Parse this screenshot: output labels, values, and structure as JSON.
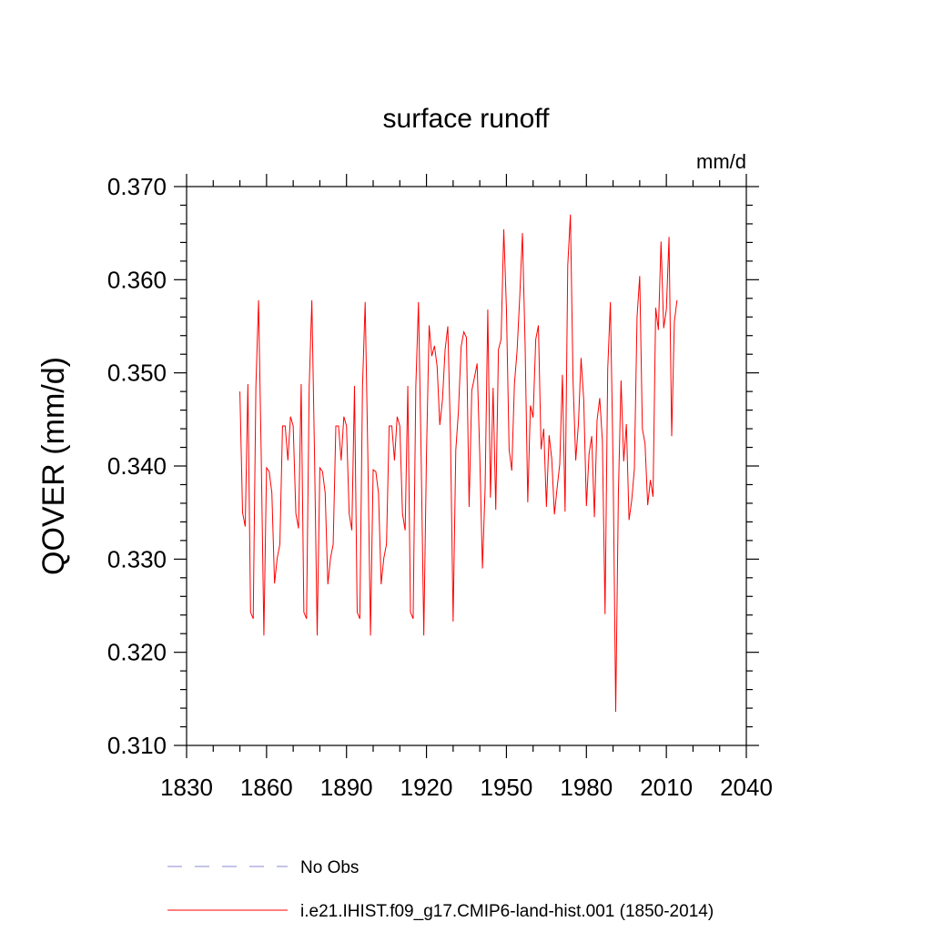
{
  "chart_data": {
    "type": "line",
    "title": "surface runoff",
    "units": "mm/d",
    "ylabel": "QOVER  (mm/d)",
    "xlabel": "",
    "xlim": [
      1830,
      2040
    ],
    "ylim": [
      0.31,
      0.37
    ],
    "xticks": [
      1830,
      1860,
      1890,
      1920,
      1950,
      1980,
      2010,
      2040
    ],
    "xtick_labels": [
      "1830",
      "1860",
      "1890",
      "1920",
      "1950",
      "1980",
      "2010",
      "2040"
    ],
    "yticks": [
      0.31,
      0.32,
      0.33,
      0.34,
      0.35,
      0.36,
      0.37
    ],
    "ytick_labels": [
      "0.310",
      "0.320",
      "0.330",
      "0.340",
      "0.350",
      "0.360",
      "0.370"
    ],
    "grid": false,
    "legend_position": "bottom",
    "series": [
      {
        "name": "No Obs",
        "color": "#8a8ad0",
        "style": "dashed",
        "x": [],
        "y": []
      },
      {
        "name": "i.e21.IHIST.f09_g17.CMIP6-land-hist.001 (1850-2014)",
        "color": "#ff0000",
        "style": "solid",
        "x": [
          1850,
          1851,
          1852,
          1853,
          1854,
          1855,
          1856,
          1857,
          1858,
          1859,
          1860,
          1861,
          1862,
          1863,
          1864,
          1865,
          1866,
          1867,
          1868,
          1869,
          1870,
          1871,
          1872,
          1873,
          1874,
          1875,
          1876,
          1877,
          1878,
          1879,
          1880,
          1881,
          1882,
          1883,
          1884,
          1885,
          1886,
          1887,
          1888,
          1889,
          1890,
          1891,
          1892,
          1893,
          1894,
          1895,
          1896,
          1897,
          1898,
          1899,
          1900,
          1901,
          1902,
          1903,
          1904,
          1905,
          1906,
          1907,
          1908,
          1909,
          1910,
          1911,
          1912,
          1913,
          1914,
          1915,
          1916,
          1917,
          1918,
          1919,
          1920,
          1921,
          1922,
          1923,
          1924,
          1925,
          1926,
          1927,
          1928,
          1929,
          1930,
          1931,
          1932,
          1933,
          1934,
          1935,
          1936,
          1937,
          1938,
          1939,
          1940,
          1941,
          1942,
          1943,
          1944,
          1945,
          1946,
          1947,
          1948,
          1949,
          1950,
          1951,
          1952,
          1953,
          1954,
          1955,
          1956,
          1957,
          1958,
          1959,
          1960,
          1961,
          1962,
          1963,
          1964,
          1965,
          1966,
          1967,
          1968,
          1969,
          1970,
          1971,
          1972,
          1973,
          1974,
          1975,
          1976,
          1977,
          1978,
          1979,
          1980,
          1981,
          1982,
          1983,
          1984,
          1985,
          1986,
          1987,
          1988,
          1989,
          1990,
          1991,
          1992,
          1993,
          1994,
          1995,
          1996,
          1997,
          1998,
          1999,
          2000,
          2001,
          2002,
          2003,
          2004,
          2005,
          2006,
          2007,
          2008,
          2009,
          2010,
          2011,
          2012,
          2013,
          2014
        ],
        "y": [
          0.348,
          0.335,
          0.3335,
          0.3488,
          0.3243,
          0.3236,
          0.3485,
          0.3578,
          0.3412,
          0.3218,
          0.3398,
          0.3394,
          0.3371,
          0.3274,
          0.3301,
          0.3316,
          0.3443,
          0.3443,
          0.3406,
          0.3453,
          0.3443,
          0.3349,
          0.3333,
          0.3488,
          0.3243,
          0.3236,
          0.3485,
          0.3578,
          0.3412,
          0.3218,
          0.3398,
          0.3394,
          0.3371,
          0.3273,
          0.3301,
          0.3316,
          0.3443,
          0.3443,
          0.3406,
          0.3453,
          0.3443,
          0.3349,
          0.3331,
          0.3486,
          0.3243,
          0.3236,
          0.3485,
          0.3576,
          0.3412,
          0.3218,
          0.3396,
          0.3394,
          0.3371,
          0.3273,
          0.3301,
          0.3316,
          0.3443,
          0.3443,
          0.3406,
          0.3453,
          0.3443,
          0.3349,
          0.3331,
          0.3486,
          0.3243,
          0.3236,
          0.3485,
          0.3576,
          0.3412,
          0.3218,
          0.3412,
          0.3551,
          0.3518,
          0.3529,
          0.3507,
          0.3444,
          0.3471,
          0.3525,
          0.355,
          0.3434,
          0.3233,
          0.3417,
          0.3459,
          0.3528,
          0.3544,
          0.3538,
          0.3356,
          0.3481,
          0.3495,
          0.351,
          0.3411,
          0.329,
          0.3376,
          0.3568,
          0.3366,
          0.3484,
          0.3353,
          0.3525,
          0.3536,
          0.3654,
          0.3569,
          0.3418,
          0.3395,
          0.3488,
          0.3524,
          0.3582,
          0.365,
          0.3531,
          0.3361,
          0.3465,
          0.3452,
          0.3536,
          0.3551,
          0.3418,
          0.344,
          0.3356,
          0.3433,
          0.3408,
          0.3348,
          0.3376,
          0.3402,
          0.3498,
          0.3351,
          0.3615,
          0.367,
          0.3491,
          0.3406,
          0.3445,
          0.3516,
          0.3471,
          0.3357,
          0.3413,
          0.3432,
          0.3345,
          0.3449,
          0.3473,
          0.3427,
          0.3241,
          0.3504,
          0.3576,
          0.3404,
          0.3136,
          0.3371,
          0.3492,
          0.3405,
          0.3445,
          0.3342,
          0.3363,
          0.3397,
          0.356,
          0.3604,
          0.344,
          0.3424,
          0.3358,
          0.3385,
          0.3367,
          0.357,
          0.3546,
          0.3641,
          0.3548,
          0.3568,
          0.3646,
          0.3432,
          0.3555,
          0.3578
        ]
      }
    ]
  }
}
